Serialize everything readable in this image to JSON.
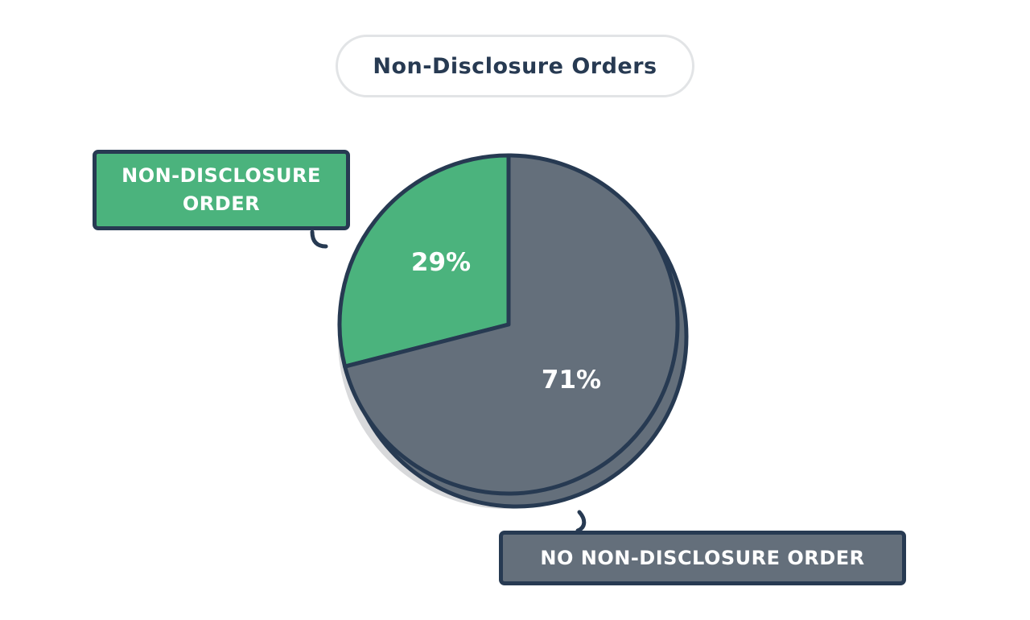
{
  "chart_data": {
    "type": "pie",
    "title": "Non-Disclosure Orders",
    "slices": [
      {
        "label": "NON-DISCLOSURE ORDER",
        "value": 29,
        "display": "29%",
        "color": "#4bb37d"
      },
      {
        "label": "NO NON-DISCLOSURE ORDER",
        "value": 71,
        "display": "71%",
        "color": "#646f7b"
      }
    ],
    "outline_color": "#273a52",
    "shadow_color": "#d8d9db"
  }
}
